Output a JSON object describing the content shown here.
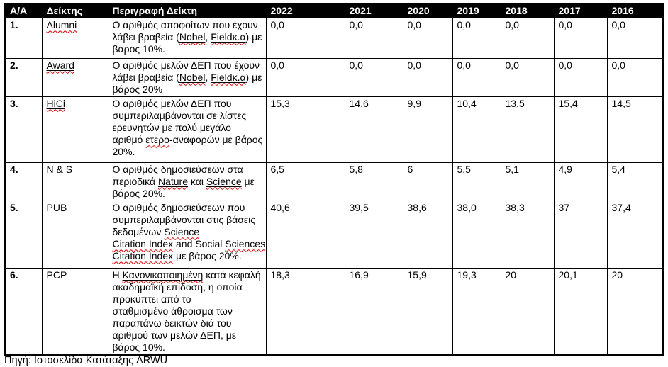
{
  "table": {
    "columns": [
      "Α/Α",
      "Δείκτης",
      "Περιγραφή Δείκτη",
      "2022",
      "2021",
      "2020",
      "2019",
      "2018",
      "2017",
      "2016"
    ],
    "rows": [
      {
        "num": "1.",
        "indicator": {
          "text": "Alumni",
          "u": true,
          "w": true
        },
        "description": [
          [
            {
              "t": "Ο αριθμός αποφοίτων που έχουν"
            }
          ],
          [
            {
              "t": "λάβει βραβεία ("
            },
            {
              "t": "Nobel",
              "u": true,
              "w": true
            },
            {
              "t": ", "
            },
            {
              "t": "Fieldκ.α",
              "u": true,
              "w": true
            },
            {
              "t": ") με"
            }
          ],
          [
            {
              "t": "βάρος 10%."
            }
          ]
        ],
        "values": [
          "0,0",
          "0,0",
          "0,0",
          "0,0",
          "0,0",
          "0,0",
          "0,0"
        ]
      },
      {
        "num": "2.",
        "indicator": {
          "text": "Award",
          "u": true,
          "w": true
        },
        "description": [
          [
            {
              "t": "Ο αριθμός μελών ΔΕΠ που έχουν"
            }
          ],
          [
            {
              "t": "λάβει βραβεία ("
            },
            {
              "t": "Nobel",
              "u": true,
              "w": true
            },
            {
              "t": ", "
            },
            {
              "t": "Fieldκ.α",
              "u": true,
              "w": true
            },
            {
              "t": ") με"
            }
          ],
          [
            {
              "t": "βάρος 20%"
            }
          ]
        ],
        "values": [
          "0,0",
          "0,0",
          "0,0",
          "0,0",
          "0,0",
          "0,0",
          "0,0"
        ]
      },
      {
        "num": "3.",
        "indicator": {
          "text": "HiCi",
          "u": true,
          "w": true
        },
        "description": [
          [
            {
              "t": "Ο αριθμός μελών ΔΕΠ που"
            }
          ],
          [
            {
              "t": "συμπεριλαμβάνονται σε λίστες"
            }
          ],
          [
            {
              "t": "ερευνητών με πολύ μεγάλο"
            }
          ],
          [
            {
              "t": "αριθμό "
            },
            {
              "t": "ετερο",
              "u": true,
              "w": true
            },
            {
              "t": "-αναφορών με βάρος"
            }
          ],
          [
            {
              "t": "20%."
            }
          ]
        ],
        "values": [
          "15,3",
          "14,6",
          "9,9",
          "10,4",
          "13,5",
          "15,4",
          "14,5"
        ]
      },
      {
        "num": "4.",
        "indicator": {
          "text": "N & S",
          "u": false,
          "w": false
        },
        "description": [
          [
            {
              "t": "Ο αριθμός δημοσιεύσεων στα"
            }
          ],
          [
            {
              "t": "περιοδικά "
            },
            {
              "t": "Nature",
              "u": true,
              "w": true
            },
            {
              "t": " και "
            },
            {
              "t": "Science",
              "u": true,
              "w": true
            },
            {
              "t": " με"
            }
          ],
          [
            {
              "t": "βάρος 20%."
            }
          ]
        ],
        "values": [
          "6,5",
          "5,8",
          "6",
          "5,5",
          "5,1",
          "4,9",
          "5,4"
        ]
      },
      {
        "num": "5.",
        "indicator": {
          "text": "PUB",
          "u": false,
          "w": false
        },
        "description": [
          [
            {
              "t": "Ο αριθμός δημοσιεύσεων που"
            }
          ],
          [
            {
              "t": "συμπεριλαμβάνονται στις βάσεις"
            }
          ],
          [
            {
              "t": "δεδομένων "
            },
            {
              "t": "Science",
              "u": true,
              "w": true
            }
          ],
          [
            {
              "t": "Citation Index",
              "u": true,
              "w": true
            },
            {
              "t": " and Social ",
              "u": true
            },
            {
              "t": "Sciences",
              "u": true,
              "w": true
            }
          ],
          [
            {
              "t": "Citation Index",
              "u": true,
              "w": true
            },
            {
              "t": " με βάρος 20%.",
              "u": true
            }
          ]
        ],
        "values": [
          "40,6",
          "39,5",
          "38,6",
          "38,0",
          "38,3",
          "37",
          "37,4"
        ]
      },
      {
        "num": "6.",
        "indicator": {
          "text": "PCP",
          "u": false,
          "w": false
        },
        "description": [
          [
            {
              "t": "Η "
            },
            {
              "t": "Κανονικοποιημένη",
              "u": true,
              "w": true
            },
            {
              "t": " κατά κεφαλή"
            }
          ],
          [
            {
              "t": "ακαδημαϊκή επίδοση, η οποία"
            }
          ],
          [
            {
              "t": "προκύπτει από το"
            }
          ],
          [
            {
              "t": "σταθμισμένο άθροισμα των"
            }
          ],
          [
            {
              "t": "παραπάνω δεικτών διά του"
            }
          ],
          [
            {
              "t": "αριθμού των μελών ΔΕΠ, με"
            }
          ],
          [
            {
              "t": "βάρος 10%."
            }
          ]
        ],
        "values": [
          "18,3",
          "16,9",
          "15,9",
          "19,3",
          "20",
          "20,1",
          "20"
        ]
      }
    ]
  },
  "footer": {
    "source_label": "Πηγή: Ιστοσελίδα Κατάταξης ARWU"
  },
  "colors": {
    "header_bg": "#000000",
    "header_text": "#ffffff",
    "border": "#000000",
    "spellcheck_squiggle": "#d40000"
  }
}
